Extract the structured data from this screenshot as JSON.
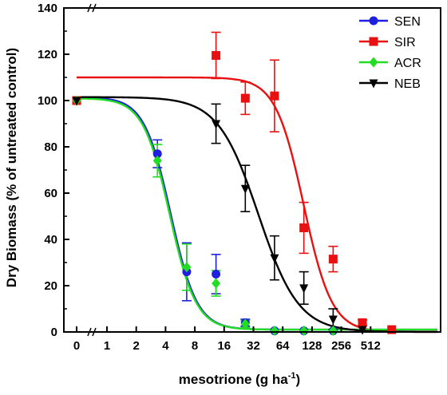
{
  "chart_data": {
    "type": "scatter",
    "title": "",
    "xlabel_main": "mesotrione (g ha",
    "xlabel_sup": "-1",
    "xlabel_close": ")",
    "ylabel": "Dry Biomass (% of untreated control)",
    "x_scale": "log2 (broken at 0)",
    "x_tick_labels": [
      "0",
      "1",
      "2",
      "4",
      "8",
      "16",
      "32",
      "64",
      "128",
      "256",
      "512"
    ],
    "x_tick_values": [
      0,
      1,
      2,
      4,
      8,
      16,
      32,
      64,
      128,
      256,
      512
    ],
    "ylim": [
      0,
      140
    ],
    "y_ticks": [
      0,
      20,
      40,
      60,
      80,
      100,
      120,
      140
    ],
    "grid": false,
    "legend_position": "top-right",
    "series": [
      {
        "name": "SEN",
        "color": "#1f1fe0",
        "marker": "circle",
        "points": [
          {
            "x": 0,
            "y": 100,
            "err": 0
          },
          {
            "x": 3.3,
            "y": 77,
            "err": 6
          },
          {
            "x": 6.6,
            "y": 26,
            "err": 12.5
          },
          {
            "x": 13.2,
            "y": 25,
            "err": 8.5
          },
          {
            "x": 26.4,
            "y": 4,
            "err": 1.5
          },
          {
            "x": 52.7,
            "y": 0.5,
            "err": 0.5
          },
          {
            "x": 105.5,
            "y": 0.5,
            "err": 0.5
          },
          {
            "x": 211,
            "y": 0.5,
            "err": 0.5
          }
        ],
        "curve": {
          "top": 101.5,
          "bottom": 1,
          "ed50": 4.5,
          "slope": 3.2
        }
      },
      {
        "name": "SIR",
        "color": "#e81010",
        "marker": "square",
        "points": [
          {
            "x": 0,
            "y": 100,
            "err": 0
          },
          {
            "x": 13.2,
            "y": 119.5,
            "err": 10
          },
          {
            "x": 26.4,
            "y": 101,
            "err": 7
          },
          {
            "x": 52.7,
            "y": 102,
            "err": 15.5
          },
          {
            "x": 105.5,
            "y": 45,
            "err": 11
          },
          {
            "x": 211,
            "y": 31.5,
            "err": 5.5
          },
          {
            "x": 422,
            "y": 4,
            "err": 1.2
          },
          {
            "x": 844,
            "y": 1,
            "err": 0.5
          }
        ],
        "curve": {
          "top": 110,
          "bottom": 0,
          "ed50": 105,
          "slope": 3.0
        }
      },
      {
        "name": "ACR",
        "color": "#22dd22",
        "marker": "diamond",
        "points": [
          {
            "x": 0,
            "y": 100,
            "err": 0
          },
          {
            "x": 3.3,
            "y": 74,
            "err": 7
          },
          {
            "x": 6.6,
            "y": 28,
            "err": 10
          },
          {
            "x": 13.2,
            "y": 21,
            "err": 5.5
          },
          {
            "x": 26.4,
            "y": 3.5,
            "err": 1.5
          },
          {
            "x": 52.7,
            "y": 0.5,
            "err": 0.5
          },
          {
            "x": 105.5,
            "y": 0.5,
            "err": 0.5
          },
          {
            "x": 211,
            "y": 0.5,
            "err": 0.5
          }
        ],
        "curve": {
          "top": 101,
          "bottom": 1,
          "ed50": 4.4,
          "slope": 3.2
        }
      },
      {
        "name": "NEB",
        "color": "#000000",
        "marker": "triangle-down",
        "points": [
          {
            "x": 0,
            "y": 100,
            "err": 0
          },
          {
            "x": 13.2,
            "y": 90,
            "err": 8.5
          },
          {
            "x": 26.4,
            "y": 62,
            "err": 10
          },
          {
            "x": 52.7,
            "y": 32,
            "err": 9.5
          },
          {
            "x": 105.5,
            "y": 19,
            "err": 7
          },
          {
            "x": 211,
            "y": 5.5,
            "err": 4.5
          },
          {
            "x": 422,
            "y": 1,
            "err": 0.5
          }
        ],
        "curve": {
          "top": 101.5,
          "bottom": 0,
          "ed50": 36,
          "slope": 2.1
        }
      }
    ]
  }
}
